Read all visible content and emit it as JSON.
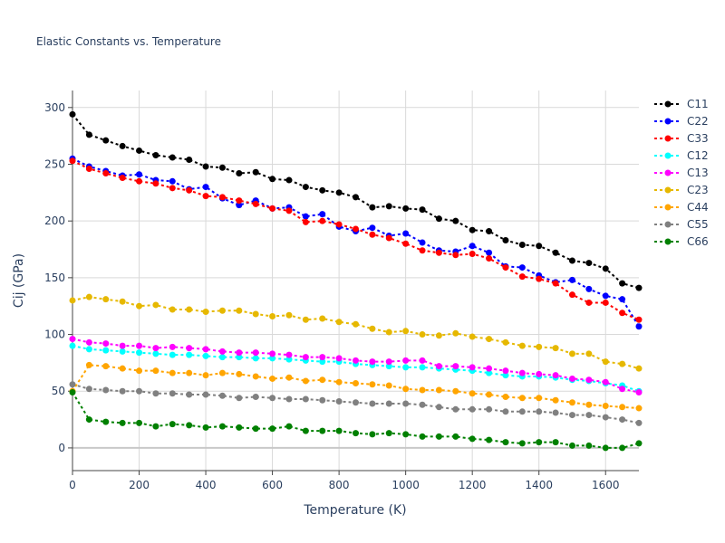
{
  "chart_data": {
    "type": "line",
    "title": "Elastic Constants vs. Temperature",
    "xlabel": "Temperature (K)",
    "ylabel": "Cij (GPa)",
    "xlim": [
      0,
      1700
    ],
    "ylim": [
      -20,
      315
    ],
    "xticks": [
      0,
      200,
      400,
      600,
      800,
      1000,
      1200,
      1400,
      1600
    ],
    "yticks": [
      0,
      50,
      100,
      150,
      200,
      250,
      300
    ],
    "grid": true,
    "legend_position": "right",
    "x": [
      0,
      50,
      100,
      150,
      200,
      250,
      300,
      350,
      400,
      450,
      500,
      550,
      600,
      650,
      700,
      750,
      800,
      850,
      900,
      950,
      1000,
      1050,
      1100,
      1150,
      1200,
      1250,
      1300,
      1350,
      1400,
      1450,
      1500,
      1550,
      1600,
      1650,
      1700
    ],
    "series": [
      {
        "name": "C11",
        "color": "#000000",
        "values": [
          294,
          276,
          271,
          266,
          262,
          258,
          256,
          254,
          248,
          247,
          242,
          243,
          237,
          236,
          230,
          227,
          225,
          221,
          212,
          213,
          211,
          210,
          202,
          200,
          192,
          191,
          183,
          179,
          178,
          172,
          165,
          163,
          158,
          145,
          141
        ]
      },
      {
        "name": "C22",
        "color": "#0000ff",
        "values": [
          255,
          248,
          244,
          240,
          241,
          236,
          235,
          228,
          230,
          220,
          214,
          218,
          211,
          212,
          204,
          206,
          195,
          191,
          194,
          187,
          189,
          181,
          174,
          173,
          178,
          172,
          160,
          159,
          152,
          146,
          148,
          140,
          134,
          131,
          107
        ]
      },
      {
        "name": "C33",
        "color": "#ff0000",
        "values": [
          253,
          246,
          242,
          238,
          235,
          233,
          229,
          227,
          222,
          221,
          218,
          215,
          211,
          209,
          199,
          200,
          197,
          193,
          188,
          185,
          180,
          174,
          172,
          170,
          171,
          167,
          159,
          151,
          149,
          145,
          135,
          128,
          128,
          119,
          113
        ]
      },
      {
        "name": "C12",
        "color": "#00ffff",
        "values": [
          90,
          87,
          86,
          85,
          84,
          83,
          82,
          82,
          81,
          80,
          80,
          79,
          79,
          78,
          77,
          76,
          76,
          74,
          73,
          72,
          71,
          71,
          70,
          69,
          68,
          66,
          64,
          63,
          63,
          62,
          60,
          59,
          57,
          55,
          50
        ]
      },
      {
        "name": "C13",
        "color": "#ff00ff",
        "values": [
          96,
          93,
          92,
          90,
          90,
          88,
          89,
          88,
          87,
          85,
          84,
          84,
          83,
          82,
          80,
          80,
          79,
          77,
          76,
          76,
          77,
          77,
          72,
          72,
          71,
          70,
          68,
          66,
          65,
          64,
          61,
          60,
          58,
          52,
          49
        ]
      },
      {
        "name": "C23",
        "color": "#e6b800",
        "values": [
          130,
          133,
          131,
          129,
          125,
          126,
          122,
          122,
          120,
          121,
          121,
          118,
          116,
          117,
          113,
          114,
          111,
          109,
          105,
          102,
          103,
          100,
          99,
          101,
          98,
          96,
          93,
          90,
          89,
          88,
          83,
          83,
          76,
          74,
          70
        ]
      },
      {
        "name": "C44",
        "color": "#ffa500",
        "values": [
          50,
          73,
          72,
          70,
          68,
          68,
          66,
          66,
          64,
          66,
          65,
          63,
          61,
          62,
          59,
          60,
          58,
          57,
          56,
          55,
          52,
          51,
          51,
          50,
          48,
          47,
          45,
          44,
          44,
          42,
          40,
          38,
          37,
          36,
          35
        ]
      },
      {
        "name": "C55",
        "color": "#808080",
        "values": [
          56,
          52,
          51,
          50,
          50,
          48,
          48,
          47,
          47,
          46,
          44,
          45,
          44,
          43,
          43,
          42,
          41,
          40,
          39,
          39,
          39,
          38,
          36,
          34,
          34,
          34,
          32,
          32,
          32,
          31,
          29,
          29,
          27,
          25,
          22
        ]
      },
      {
        "name": "C66",
        "color": "#008000",
        "values": [
          49,
          25,
          23,
          22,
          22,
          19,
          21,
          20,
          18,
          19,
          18,
          17,
          17,
          19,
          15,
          15,
          15,
          13,
          12,
          13,
          12,
          10,
          10,
          10,
          8,
          7,
          5,
          4,
          5,
          5,
          2,
          2,
          0,
          0,
          4
        ]
      }
    ]
  }
}
